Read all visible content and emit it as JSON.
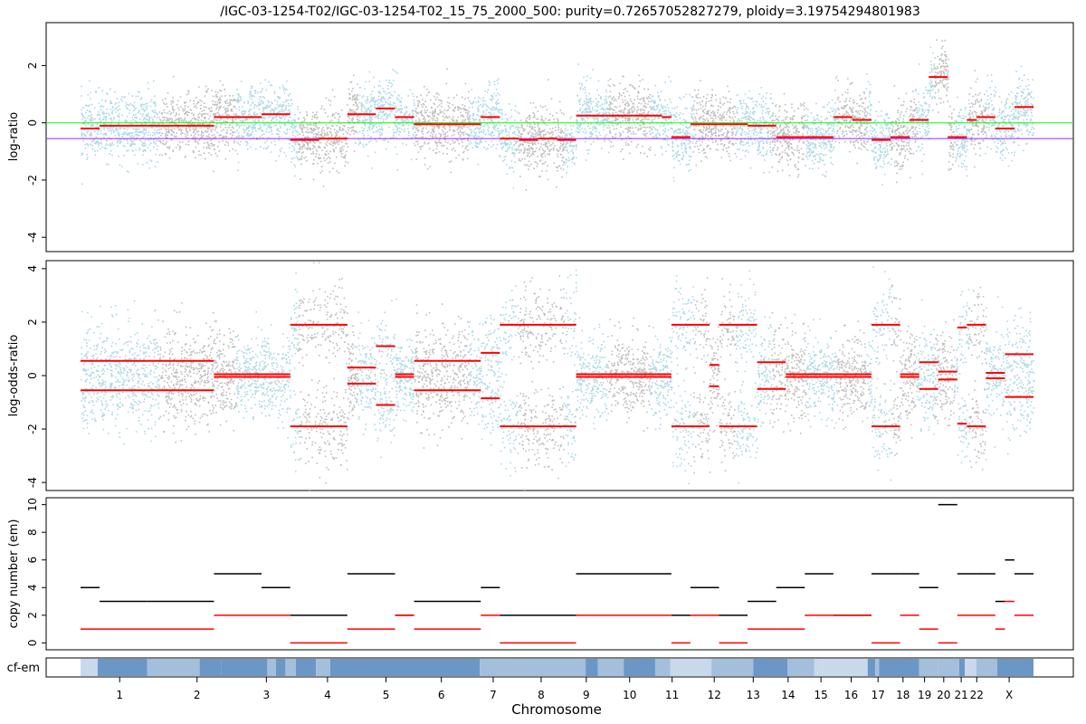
{
  "chart_data": {
    "type": "scatter",
    "title": "/IGC-03-1254-T02/IGC-03-1254-T02_15_75_2000_500: purity=0.72657052827279, ploidy=3.19754294801983",
    "xlabel": "Chromosome",
    "colors": {
      "blue": "#add8e6",
      "grey": "#bebebe",
      "segment": "#ff0000",
      "green_line": "#00ff00",
      "purple_line": "#a020f0",
      "cf_dark": "#6b97c6",
      "cf_mid": "#a3bfdc",
      "cf_light": "#c8d9ec"
    },
    "chromosomes": [
      {
        "name": "1",
        "len": 249
      },
      {
        "name": "2",
        "len": 243
      },
      {
        "name": "3",
        "len": 198
      },
      {
        "name": "4",
        "len": 191
      },
      {
        "name": "5",
        "len": 181
      },
      {
        "name": "6",
        "len": 171
      },
      {
        "name": "7",
        "len": 159
      },
      {
        "name": "8",
        "len": 146
      },
      {
        "name": "9",
        "len": 141
      },
      {
        "name": "10",
        "len": 135
      },
      {
        "name": "11",
        "len": 135
      },
      {
        "name": "12",
        "len": 133
      },
      {
        "name": "13",
        "len": 115
      },
      {
        "name": "14",
        "len": 107
      },
      {
        "name": "15",
        "len": 102
      },
      {
        "name": "16",
        "len": 90
      },
      {
        "name": "17",
        "len": 81
      },
      {
        "name": "18",
        "len": 78
      },
      {
        "name": "19",
        "len": 59
      },
      {
        "name": "20",
        "len": 63
      },
      {
        "name": "21",
        "len": 48
      },
      {
        "name": "22",
        "len": 51
      },
      {
        "name": "X",
        "len": 155
      }
    ],
    "panels": [
      {
        "ylabel": "log-ratio",
        "ylim": [
          -4.5,
          3.5
        ],
        "yticks": [
          -4,
          -2,
          0,
          2
        ],
        "ref_lines": [
          0,
          -0.55
        ],
        "segments": [
          [
            0.0,
            0.02,
            -0.2
          ],
          [
            0.02,
            0.07,
            -0.1
          ],
          [
            0.07,
            0.14,
            -0.1
          ],
          [
            0.14,
            0.17,
            0.2
          ],
          [
            0.17,
            0.19,
            0.2
          ],
          [
            0.19,
            0.22,
            0.3
          ],
          [
            0.22,
            0.25,
            -0.6
          ],
          [
            0.25,
            0.28,
            -0.55
          ],
          [
            0.28,
            0.31,
            0.3
          ],
          [
            0.31,
            0.33,
            0.5
          ],
          [
            0.33,
            0.35,
            0.2
          ],
          [
            0.35,
            0.38,
            -0.05
          ],
          [
            0.38,
            0.42,
            -0.05
          ],
          [
            0.42,
            0.44,
            0.2
          ],
          [
            0.44,
            0.46,
            -0.55
          ],
          [
            0.46,
            0.48,
            -0.6
          ],
          [
            0.48,
            0.5,
            -0.55
          ],
          [
            0.5,
            0.52,
            -0.6
          ],
          [
            0.52,
            0.55,
            0.25
          ],
          [
            0.55,
            0.58,
            0.25
          ],
          [
            0.58,
            0.61,
            0.25
          ],
          [
            0.61,
            0.62,
            0.2
          ],
          [
            0.62,
            0.64,
            -0.5
          ],
          [
            0.64,
            0.67,
            -0.05
          ],
          [
            0.67,
            0.7,
            -0.05
          ],
          [
            0.7,
            0.73,
            -0.1
          ],
          [
            0.73,
            0.76,
            -0.5
          ],
          [
            0.76,
            0.79,
            -0.5
          ],
          [
            0.79,
            0.81,
            0.2
          ],
          [
            0.81,
            0.83,
            0.1
          ],
          [
            0.83,
            0.85,
            -0.6
          ],
          [
            0.85,
            0.87,
            -0.5
          ],
          [
            0.87,
            0.89,
            0.1
          ],
          [
            0.89,
            0.91,
            1.6
          ],
          [
            0.91,
            0.93,
            -0.5
          ],
          [
            0.93,
            0.94,
            0.1
          ],
          [
            0.94,
            0.96,
            0.2
          ],
          [
            0.96,
            0.98,
            -0.2
          ],
          [
            0.98,
            1.0,
            0.55
          ]
        ]
      },
      {
        "ylabel": "log-odds-ratio",
        "ylim": [
          -4.3,
          4.3
        ],
        "yticks": [
          -4,
          -2,
          0,
          2,
          4
        ],
        "mirror": true,
        "segments": [
          [
            0.0,
            0.07,
            0.55
          ],
          [
            0.07,
            0.14,
            0.55
          ],
          [
            0.14,
            0.22,
            0.05
          ],
          [
            0.22,
            0.28,
            1.9
          ],
          [
            0.28,
            0.31,
            0.3
          ],
          [
            0.31,
            0.33,
            1.1
          ],
          [
            0.33,
            0.35,
            0.05
          ],
          [
            0.35,
            0.42,
            0.55
          ],
          [
            0.42,
            0.44,
            0.85
          ],
          [
            0.44,
            0.52,
            1.9
          ],
          [
            0.52,
            0.58,
            0.05
          ],
          [
            0.58,
            0.62,
            0.05
          ],
          [
            0.62,
            0.66,
            1.9
          ],
          [
            0.66,
            0.67,
            0.4
          ],
          [
            0.67,
            0.71,
            1.9
          ],
          [
            0.71,
            0.74,
            0.5
          ],
          [
            0.74,
            0.79,
            0.05
          ],
          [
            0.79,
            0.83,
            0.05
          ],
          [
            0.83,
            0.86,
            1.9
          ],
          [
            0.86,
            0.88,
            0.05
          ],
          [
            0.88,
            0.9,
            0.5
          ],
          [
            0.9,
            0.92,
            0.15
          ],
          [
            0.92,
            0.93,
            1.8
          ],
          [
            0.93,
            0.95,
            1.9
          ],
          [
            0.95,
            0.97,
            0.1
          ],
          [
            0.97,
            1.0,
            0.8
          ]
        ]
      },
      {
        "ylabel": "copy number (em)",
        "ylim": [
          -0.5,
          10.5
        ],
        "yticks": [
          0,
          2,
          4,
          6,
          8,
          10
        ],
        "segments_total": [
          [
            0.0,
            0.02,
            4
          ],
          [
            0.02,
            0.07,
            3
          ],
          [
            0.07,
            0.14,
            3
          ],
          [
            0.14,
            0.19,
            5
          ],
          [
            0.19,
            0.22,
            4
          ],
          [
            0.22,
            0.28,
            2
          ],
          [
            0.28,
            0.33,
            5
          ],
          [
            0.33,
            0.35,
            2
          ],
          [
            0.35,
            0.42,
            3
          ],
          [
            0.42,
            0.44,
            4
          ],
          [
            0.44,
            0.52,
            2
          ],
          [
            0.52,
            0.62,
            5
          ],
          [
            0.62,
            0.64,
            2
          ],
          [
            0.64,
            0.67,
            4
          ],
          [
            0.67,
            0.7,
            2
          ],
          [
            0.7,
            0.73,
            3
          ],
          [
            0.73,
            0.76,
            4
          ],
          [
            0.76,
            0.79,
            5
          ],
          [
            0.79,
            0.83,
            2
          ],
          [
            0.83,
            0.86,
            5
          ],
          [
            0.86,
            0.88,
            5
          ],
          [
            0.88,
            0.9,
            4
          ],
          [
            0.9,
            0.92,
            10
          ],
          [
            0.92,
            0.94,
            5
          ],
          [
            0.94,
            0.96,
            5
          ],
          [
            0.96,
            0.97,
            3
          ],
          [
            0.97,
            0.98,
            6
          ],
          [
            0.98,
            1.0,
            5
          ]
        ],
        "segments_minor": [
          [
            0.0,
            0.14,
            1
          ],
          [
            0.14,
            0.22,
            2
          ],
          [
            0.22,
            0.28,
            0
          ],
          [
            0.28,
            0.33,
            1
          ],
          [
            0.33,
            0.35,
            2
          ],
          [
            0.35,
            0.42,
            1
          ],
          [
            0.42,
            0.44,
            2
          ],
          [
            0.44,
            0.52,
            0
          ],
          [
            0.52,
            0.62,
            2
          ],
          [
            0.62,
            0.64,
            0
          ],
          [
            0.64,
            0.67,
            2
          ],
          [
            0.67,
            0.7,
            0
          ],
          [
            0.7,
            0.73,
            1
          ],
          [
            0.73,
            0.76,
            1
          ],
          [
            0.76,
            0.79,
            2
          ],
          [
            0.79,
            0.83,
            2
          ],
          [
            0.83,
            0.86,
            0
          ],
          [
            0.86,
            0.88,
            2
          ],
          [
            0.88,
            0.9,
            1
          ],
          [
            0.9,
            0.92,
            0
          ],
          [
            0.92,
            0.94,
            2
          ],
          [
            0.94,
            0.96,
            2
          ],
          [
            0.96,
            0.97,
            1
          ],
          [
            0.97,
            0.98,
            3
          ],
          [
            0.98,
            1.0,
            2
          ]
        ]
      }
    ],
    "cf_panel": {
      "ylabel": "cf-em",
      "blocks": [
        [
          0.0,
          0.018,
          "cf_light"
        ],
        [
          0.018,
          0.07,
          "cf_dark"
        ],
        [
          0.07,
          0.125,
          "cf_mid"
        ],
        [
          0.125,
          0.148,
          "cf_dark"
        ],
        [
          0.148,
          0.196,
          "cf_dark"
        ],
        [
          0.196,
          0.205,
          "cf_mid"
        ],
        [
          0.205,
          0.215,
          "cf_dark"
        ],
        [
          0.215,
          0.226,
          "cf_mid"
        ],
        [
          0.226,
          0.247,
          "cf_dark"
        ],
        [
          0.247,
          0.262,
          "cf_mid"
        ],
        [
          0.262,
          0.419,
          "cf_dark"
        ],
        [
          0.419,
          0.53,
          "cf_mid"
        ],
        [
          0.53,
          0.543,
          "cf_dark"
        ],
        [
          0.543,
          0.57,
          "cf_mid"
        ],
        [
          0.57,
          0.603,
          "cf_dark"
        ],
        [
          0.603,
          0.619,
          "cf_mid"
        ],
        [
          0.619,
          0.662,
          "cf_light"
        ],
        [
          0.662,
          0.706,
          "cf_mid"
        ],
        [
          0.706,
          0.742,
          "cf_dark"
        ],
        [
          0.742,
          0.77,
          "cf_mid"
        ],
        [
          0.77,
          0.778,
          "cf_light"
        ],
        [
          0.778,
          0.826,
          "cf_light"
        ],
        [
          0.826,
          0.834,
          "cf_dark"
        ],
        [
          0.834,
          0.838,
          "cf_mid"
        ],
        [
          0.838,
          0.88,
          "cf_dark"
        ],
        [
          0.88,
          0.9,
          "cf_mid"
        ],
        [
          0.9,
          0.922,
          "cf_mid"
        ],
        [
          0.922,
          0.928,
          "cf_dark"
        ],
        [
          0.928,
          0.94,
          "cf_light"
        ],
        [
          0.94,
          0.962,
          "cf_mid"
        ],
        [
          0.962,
          1.0,
          "cf_dark"
        ]
      ]
    }
  }
}
